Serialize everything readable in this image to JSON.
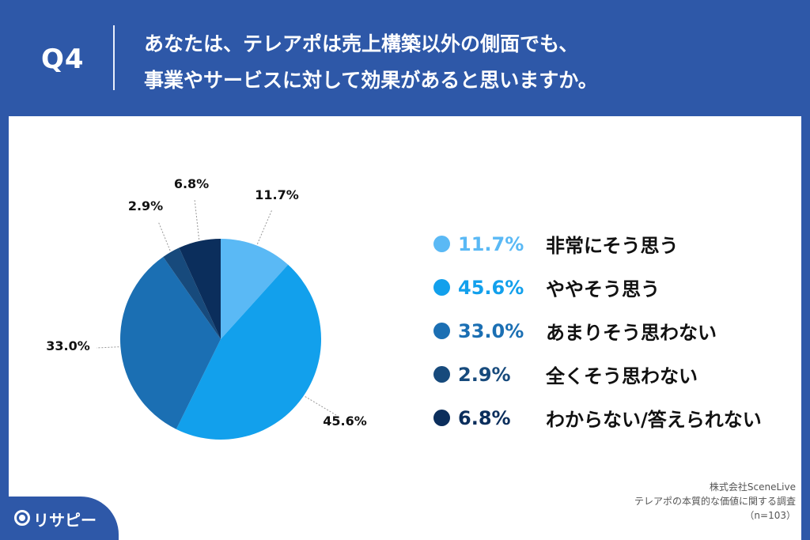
{
  "header": {
    "question_label": "Q4",
    "title_line1": "あなたは、テレアポは売上構築以外の側面でも、",
    "title_line2": "事業やサービスに対して効果があると思いますか。"
  },
  "chart_data": {
    "type": "pie",
    "slices": [
      {
        "label": "非常にそう思う",
        "value": 11.7,
        "display": "11.7%",
        "color": "#5ab9f5"
      },
      {
        "label": "ややそう思う",
        "value": 45.6,
        "display": "45.6%",
        "color": "#12a0ec"
      },
      {
        "label": "あまりそう思わない",
        "value": 33.0,
        "display": "33.0%",
        "color": "#1b6fb3"
      },
      {
        "label": "全くそう思わない",
        "value": 2.9,
        "display": "2.9%",
        "color": "#174a7c"
      },
      {
        "label": "わからない/答えられない",
        "value": 6.8,
        "display": "6.8%",
        "color": "#0b2e5c"
      }
    ],
    "start_angle": "12 o'clock",
    "direction": "clockwise",
    "legend_position": "right"
  },
  "source": {
    "line1": "株式会社SceneLive",
    "line2": "テレアポの本質的な価値に関する調査",
    "line3": "（n=103）"
  },
  "brand": {
    "name": "リサピー"
  }
}
